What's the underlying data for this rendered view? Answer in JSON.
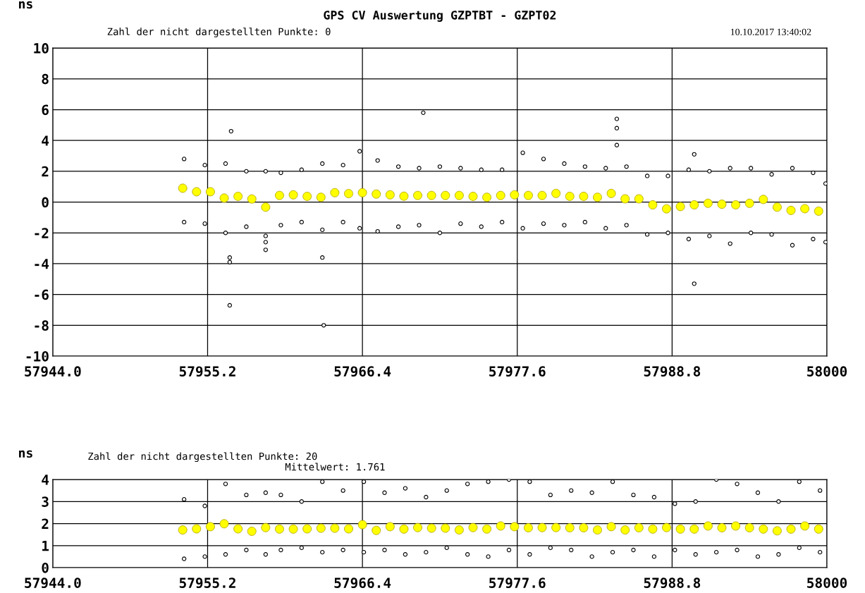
{
  "chart_data": [
    {
      "type": "scatter",
      "title": "GPS CV Auswertung GZPTBT - GZPT02",
      "ylabel": "ns",
      "annotations": [
        "Zahl der nicht dargestellten Punkte: 0",
        "10.10.2017 13:40:02"
      ],
      "xlim": [
        57944,
        58000
      ],
      "xticks": [
        {
          "value": 57944,
          "label": "57944.0"
        },
        57955.2,
        57966.4,
        57977.6,
        57988.8,
        58000
      ],
      "ylim": [
        -10,
        10
      ],
      "yticks": [
        -10,
        -8,
        -6,
        -4,
        -2,
        0,
        2,
        4,
        6,
        8,
        10
      ],
      "grid": true,
      "series": [
        {
          "color": "#000000",
          "marker": "circle",
          "x": [
            57953.5,
            57953.5,
            57955,
            57955,
            57956.5,
            57956.5,
            57958,
            57958,
            57959.4,
            57959.4,
            57960.5,
            57960.5,
            57962,
            57962,
            57963.5,
            57963.5,
            57965,
            57965,
            57966.2,
            57966.2,
            57967.5,
            57967.5,
            57969,
            57969,
            57970.5,
            57970.5,
            57972,
            57972,
            57973.5,
            57973.5,
            57975,
            57975,
            57976.5,
            57976.5,
            57978,
            57978,
            57979.5,
            57979.5,
            57981,
            57981,
            57982.5,
            57982.5,
            57984,
            57984,
            57985.5,
            57985.5,
            57987,
            57987,
            57988.5,
            57988.5,
            57990,
            57990,
            57991.5,
            57991.5,
            57993,
            57993,
            57994.5,
            57994.5,
            57996,
            57996,
            57997.5,
            57997.5,
            57999,
            57999,
            57999.9,
            57999.9,
            57956.9,
            57956.8,
            57956.8,
            57956.8,
            57959.4,
            57959.4,
            57963.6,
            57963.5,
            57970.8,
            57984.8,
            57984.8,
            57984.8,
            57990.4,
            57990.4
          ],
          "values": [
            2.8,
            -1.3,
            2.4,
            -1.4,
            2.5,
            -2.0,
            2.0,
            -1.6,
            2.0,
            -3.1,
            1.9,
            -1.5,
            2.1,
            -1.3,
            2.5,
            -1.8,
            2.4,
            -1.3,
            3.3,
            -1.7,
            2.7,
            -1.9,
            2.3,
            -1.6,
            2.2,
            -1.5,
            2.3,
            -2.0,
            2.2,
            -1.4,
            2.1,
            -1.6,
            2.1,
            -1.3,
            3.2,
            -1.7,
            2.8,
            -1.4,
            2.5,
            -1.5,
            2.3,
            -1.3,
            2.2,
            -1.7,
            2.3,
            -1.5,
            1.7,
            -2.1,
            1.7,
            -2.0,
            2.1,
            -2.4,
            2.0,
            -2.2,
            2.2,
            -2.7,
            2.2,
            -2.0,
            1.8,
            -2.1,
            2.2,
            -2.8,
            1.9,
            -2.4,
            1.2,
            -2.6,
            4.6,
            -6.7,
            -3.6,
            -3.9,
            -2.2,
            -2.6,
            -8.0,
            -3.6,
            5.8,
            5.4,
            4.8,
            3.7,
            -5.3,
            3.1
          ]
        },
        {
          "color": "#ffff00",
          "marker": "circle",
          "x": [
            57953.4,
            57954.4,
            57955.4,
            57956.4,
            57957.4,
            57958.4,
            57959.4,
            57960.4,
            57961.4,
            57962.4,
            57963.4,
            57964.4,
            57965.4,
            57966.4,
            57967.4,
            57968.4,
            57969.4,
            57970.4,
            57971.4,
            57972.4,
            57973.4,
            57974.4,
            57975.4,
            57976.4,
            57977.4,
            57978.4,
            57979.4,
            57980.4,
            57981.4,
            57982.4,
            57983.4,
            57984.4,
            57985.4,
            57986.4,
            57987.4,
            57988.4,
            57989.4,
            57990.4,
            57991.4,
            57992.4,
            57993.4,
            57994.4,
            57995.4,
            57996.4,
            57997.4,
            57998.4,
            57999.4
          ],
          "values": [
            0.9,
            0.67,
            0.67,
            0.26,
            0.37,
            0.2,
            -0.33,
            0.43,
            0.47,
            0.37,
            0.31,
            0.61,
            0.55,
            0.61,
            0.52,
            0.47,
            0.38,
            0.43,
            0.43,
            0.43,
            0.43,
            0.37,
            0.31,
            0.43,
            0.47,
            0.43,
            0.43,
            0.56,
            0.37,
            0.37,
            0.31,
            0.56,
            0.21,
            0.21,
            -0.18,
            -0.44,
            -0.29,
            -0.18,
            -0.08,
            -0.14,
            -0.18,
            -0.08,
            0.17,
            -0.33,
            -0.54,
            -0.43,
            -0.59
          ]
        }
      ]
    },
    {
      "type": "scatter",
      "ylabel": "ns",
      "annotations": [
        "Zahl der nicht dargestellten Punkte: 20",
        "Mittelwert: 1.761"
      ],
      "xlim": [
        57944,
        58000
      ],
      "xticks": [
        {
          "value": 57944,
          "label": "57944.0"
        },
        57955.2,
        57966.4,
        57977.6,
        57988.8,
        58000
      ],
      "ylim": [
        0,
        4
      ],
      "yticks": [
        0,
        1,
        2,
        3,
        4
      ],
      "grid": true,
      "series": [
        {
          "color": "#000000",
          "marker": "circle",
          "x": [
            57953.5,
            57953.5,
            57955,
            57955,
            57956.5,
            57956.5,
            57958,
            57958,
            57959.4,
            57959.4,
            57960.5,
            57960.5,
            57962,
            57962,
            57963.5,
            57963.5,
            57965,
            57965,
            57966.5,
            57966.5,
            57968,
            57968,
            57969.5,
            57969.5,
            57971,
            57971,
            57972.5,
            57972.5,
            57974,
            57974,
            57975.5,
            57975.5,
            57977,
            57977,
            57978.5,
            57978.5,
            57980,
            57980,
            57981.5,
            57981.5,
            57983,
            57983,
            57984.5,
            57984.5,
            57986,
            57986,
            57987.5,
            57987.5,
            57989,
            57989,
            57990.5,
            57990.5,
            57992,
            57992,
            57993.5,
            57993.5,
            57995,
            57995,
            57996.5,
            57996.5,
            57998,
            57998,
            57999.5,
            57999.5
          ],
          "values": [
            3.1,
            0.4,
            2.8,
            0.5,
            3.8,
            0.6,
            3.3,
            0.8,
            3.4,
            0.6,
            3.3,
            0.8,
            3.0,
            0.9,
            3.9,
            0.7,
            3.5,
            0.8,
            3.9,
            0.7,
            3.4,
            0.8,
            3.6,
            0.6,
            3.2,
            0.7,
            3.5,
            0.9,
            3.8,
            0.6,
            3.9,
            0.5,
            4.0,
            0.8,
            3.9,
            0.6,
            3.3,
            0.9,
            3.5,
            0.8,
            3.4,
            0.5,
            3.9,
            0.7,
            3.3,
            0.8,
            3.2,
            0.5,
            2.9,
            0.8,
            3.0,
            0.6,
            4.0,
            0.7,
            3.8,
            0.8,
            3.4,
            0.5,
            3.0,
            0.6,
            3.9,
            0.9,
            3.5,
            0.7
          ]
        },
        {
          "color": "#ffff00",
          "marker": "circle",
          "x": [
            57953.4,
            57954.4,
            57955.4,
            57956.4,
            57957.4,
            57958.4,
            57959.4,
            57960.4,
            57961.4,
            57962.4,
            57963.4,
            57964.4,
            57965.4,
            57966.4,
            57967.4,
            57968.4,
            57969.4,
            57970.4,
            57971.4,
            57972.4,
            57973.4,
            57974.4,
            57975.4,
            57976.4,
            57977.4,
            57978.4,
            57979.4,
            57980.4,
            57981.4,
            57982.4,
            57983.4,
            57984.4,
            57985.4,
            57986.4,
            57987.4,
            57988.4,
            57989.4,
            57990.4,
            57991.4,
            57992.4,
            57993.4,
            57994.4,
            57995.4,
            57996.4,
            57997.4,
            57998.4,
            57999.4
          ],
          "values": [
            1.71,
            1.76,
            1.86,
            1.99,
            1.76,
            1.65,
            1.82,
            1.75,
            1.75,
            1.76,
            1.79,
            1.79,
            1.76,
            1.95,
            1.69,
            1.86,
            1.75,
            1.82,
            1.79,
            1.79,
            1.71,
            1.82,
            1.75,
            1.89,
            1.86,
            1.81,
            1.82,
            1.82,
            1.81,
            1.81,
            1.71,
            1.86,
            1.71,
            1.81,
            1.75,
            1.82,
            1.75,
            1.75,
            1.89,
            1.81,
            1.89,
            1.81,
            1.75,
            1.67,
            1.75,
            1.89,
            1.75
          ]
        }
      ]
    }
  ]
}
